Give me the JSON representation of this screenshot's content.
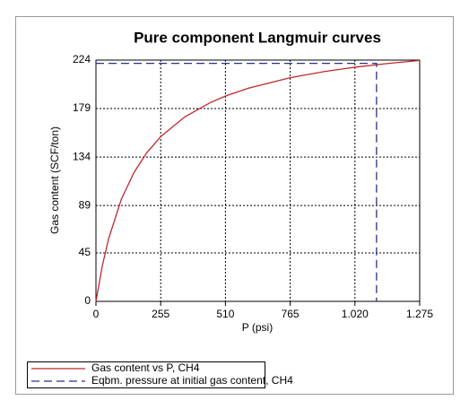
{
  "chart_data": {
    "type": "line",
    "title": "Pure component Langmuir curves",
    "xlabel": "P (psi)",
    "ylabel": "Gas content (SCF/ton)",
    "xlim": [
      0,
      1275
    ],
    "ylim": [
      0,
      224
    ],
    "xticks": [
      0,
      255,
      510,
      765,
      {
        "value": 1020,
        "label": "1.020"
      },
      {
        "value": 1275,
        "label": "1.275"
      }
    ],
    "yticks": [
      0,
      45,
      89,
      134,
      179,
      224
    ],
    "grid": true,
    "legend": "bottom",
    "series": [
      {
        "name": "Gas content vs P, CH4",
        "color": "#c0282d",
        "dash": false,
        "x": [
          0,
          25,
          50,
          100,
          150,
          200,
          255,
          350,
          450,
          510,
          600,
          765,
          900,
          1020,
          1150,
          1275
        ],
        "values": [
          0,
          32.9,
          58.3,
          94.8,
          119.7,
          137.9,
          152.9,
          171.3,
          184.5,
          190.6,
          197.9,
          207.7,
          213.4,
          217.4,
          220.9,
          223.7
        ]
      },
      {
        "name": "Eqbm. pressure at initial gas content, CH4",
        "color": "#2a2f86",
        "dash": true,
        "x": [
          0,
          1105,
          1105
        ],
        "values": [
          221,
          221,
          0
        ]
      }
    ]
  }
}
